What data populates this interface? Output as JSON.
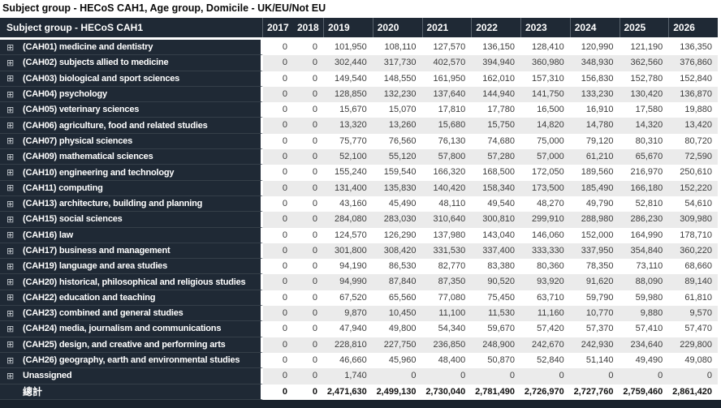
{
  "title": "Subject group - HECoS CAH1, Age group, Domicile - UK/EU/Not EU",
  "colors": {
    "header_bg": "#1f2935",
    "row_label_bg": "#1f2935",
    "row_stripe": "#ebebeb",
    "selected_cell_bg": "#d9d9d9",
    "footer_bar_bg": "#1a232d"
  },
  "icons": {
    "expand": "expand-plus-icon",
    "expand_glyph": "⊞"
  },
  "table": {
    "header": {
      "label": "Subject group - HECoS CAH1",
      "years": [
        "2017",
        "2018",
        "2019",
        "2020",
        "2021",
        "2022",
        "2023",
        "2024",
        "2025",
        "2026"
      ]
    },
    "selected_cell": {
      "row_label": "(CAH17) business and management",
      "year": "2022",
      "value": "337,400"
    },
    "rows": [
      {
        "label": "(CAH01) medicine and dentistry",
        "expandable": true,
        "total": false,
        "values": [
          "0",
          "0",
          "101,950",
          "108,110",
          "127,570",
          "136,150",
          "128,410",
          "120,990",
          "121,190",
          "136,350"
        ]
      },
      {
        "label": "(CAH02) subjects allied to medicine",
        "expandable": true,
        "total": false,
        "values": [
          "0",
          "0",
          "302,440",
          "317,730",
          "402,570",
          "394,940",
          "360,980",
          "348,930",
          "362,560",
          "376,860"
        ]
      },
      {
        "label": "(CAH03) biological and sport sciences",
        "expandable": true,
        "total": false,
        "values": [
          "0",
          "0",
          "149,540",
          "148,550",
          "161,950",
          "162,010",
          "157,310",
          "156,830",
          "152,780",
          "152,840"
        ]
      },
      {
        "label": "(CAH04) psychology",
        "expandable": true,
        "total": false,
        "values": [
          "0",
          "0",
          "128,850",
          "132,230",
          "137,640",
          "144,940",
          "141,750",
          "133,230",
          "130,420",
          "136,870"
        ]
      },
      {
        "label": "(CAH05) veterinary sciences",
        "expandable": true,
        "total": false,
        "values": [
          "0",
          "0",
          "15,670",
          "15,070",
          "17,810",
          "17,780",
          "16,500",
          "16,910",
          "17,580",
          "19,880"
        ]
      },
      {
        "label": "(CAH06) agriculture, food and related studies",
        "expandable": true,
        "total": false,
        "values": [
          "0",
          "0",
          "13,320",
          "13,260",
          "15,680",
          "15,750",
          "14,820",
          "14,780",
          "14,320",
          "13,420"
        ]
      },
      {
        "label": "(CAH07) physical sciences",
        "expandable": true,
        "total": false,
        "values": [
          "0",
          "0",
          "75,770",
          "76,560",
          "76,130",
          "74,680",
          "75,000",
          "79,120",
          "80,310",
          "80,720"
        ]
      },
      {
        "label": "(CAH09) mathematical sciences",
        "expandable": true,
        "total": false,
        "values": [
          "0",
          "0",
          "52,100",
          "55,120",
          "57,800",
          "57,280",
          "57,000",
          "61,210",
          "65,670",
          "72,590"
        ]
      },
      {
        "label": "(CAH10) engineering and technology",
        "expandable": true,
        "total": false,
        "values": [
          "0",
          "0",
          "155,240",
          "159,540",
          "166,320",
          "168,500",
          "172,050",
          "189,560",
          "216,970",
          "250,610"
        ]
      },
      {
        "label": "(CAH11) computing",
        "expandable": true,
        "total": false,
        "values": [
          "0",
          "0",
          "131,400",
          "135,830",
          "140,420",
          "158,340",
          "173,500",
          "185,490",
          "166,180",
          "152,220"
        ]
      },
      {
        "label": "(CAH13) architecture, building and planning",
        "expandable": true,
        "total": false,
        "values": [
          "0",
          "0",
          "43,160",
          "45,490",
          "48,110",
          "49,540",
          "48,270",
          "49,790",
          "52,810",
          "54,610"
        ]
      },
      {
        "label": "(CAH15) social sciences",
        "expandable": true,
        "total": false,
        "values": [
          "0",
          "0",
          "284,080",
          "283,030",
          "310,640",
          "300,810",
          "299,910",
          "288,980",
          "286,230",
          "309,980"
        ]
      },
      {
        "label": "(CAH16) law",
        "expandable": true,
        "total": false,
        "values": [
          "0",
          "0",
          "124,570",
          "126,290",
          "137,980",
          "143,040",
          "146,060",
          "152,000",
          "164,990",
          "178,710"
        ]
      },
      {
        "label": "(CAH17) business and management",
        "expandable": true,
        "total": false,
        "values": [
          "0",
          "0",
          "301,800",
          "308,420",
          "331,530",
          "337,400",
          "333,330",
          "337,950",
          "354,840",
          "360,220"
        ]
      },
      {
        "label": "(CAH19) language and area studies",
        "expandable": true,
        "total": false,
        "values": [
          "0",
          "0",
          "94,190",
          "86,530",
          "82,770",
          "83,380",
          "80,360",
          "78,350",
          "73,110",
          "68,660"
        ]
      },
      {
        "label": "(CAH20) historical, philosophical and religious studies",
        "expandable": true,
        "total": false,
        "values": [
          "0",
          "0",
          "94,990",
          "87,840",
          "87,350",
          "90,520",
          "93,920",
          "91,620",
          "88,090",
          "89,140"
        ]
      },
      {
        "label": "(CAH22) education and teaching",
        "expandable": true,
        "total": false,
        "values": [
          "0",
          "0",
          "67,520",
          "65,560",
          "77,080",
          "75,450",
          "63,710",
          "59,790",
          "59,980",
          "61,810"
        ]
      },
      {
        "label": "(CAH23) combined and general studies",
        "expandable": true,
        "total": false,
        "values": [
          "0",
          "0",
          "9,870",
          "10,450",
          "11,100",
          "11,530",
          "11,160",
          "10,770",
          "9,880",
          "9,570"
        ]
      },
      {
        "label": "(CAH24) media, journalism and communications",
        "expandable": true,
        "total": false,
        "values": [
          "0",
          "0",
          "47,940",
          "49,800",
          "54,340",
          "59,670",
          "57,420",
          "57,370",
          "57,410",
          "57,470"
        ]
      },
      {
        "label": "(CAH25) design, and creative and performing arts",
        "expandable": true,
        "total": false,
        "values": [
          "0",
          "0",
          "228,810",
          "227,750",
          "236,850",
          "248,900",
          "242,670",
          "242,930",
          "234,640",
          "229,800"
        ]
      },
      {
        "label": "(CAH26) geography, earth and environmental studies",
        "expandable": true,
        "total": false,
        "values": [
          "0",
          "0",
          "46,660",
          "45,960",
          "48,400",
          "50,870",
          "52,840",
          "51,140",
          "49,490",
          "49,080"
        ]
      },
      {
        "label": "Unassigned",
        "expandable": true,
        "total": false,
        "values": [
          "0",
          "0",
          "1,740",
          "0",
          "0",
          "0",
          "0",
          "0",
          "0",
          "0"
        ]
      },
      {
        "label": "總計",
        "expandable": false,
        "total": true,
        "values": [
          "0",
          "0",
          "2,471,630",
          "2,499,130",
          "2,730,040",
          "2,781,490",
          "2,726,970",
          "2,727,760",
          "2,759,460",
          "2,861,420"
        ]
      }
    ]
  }
}
